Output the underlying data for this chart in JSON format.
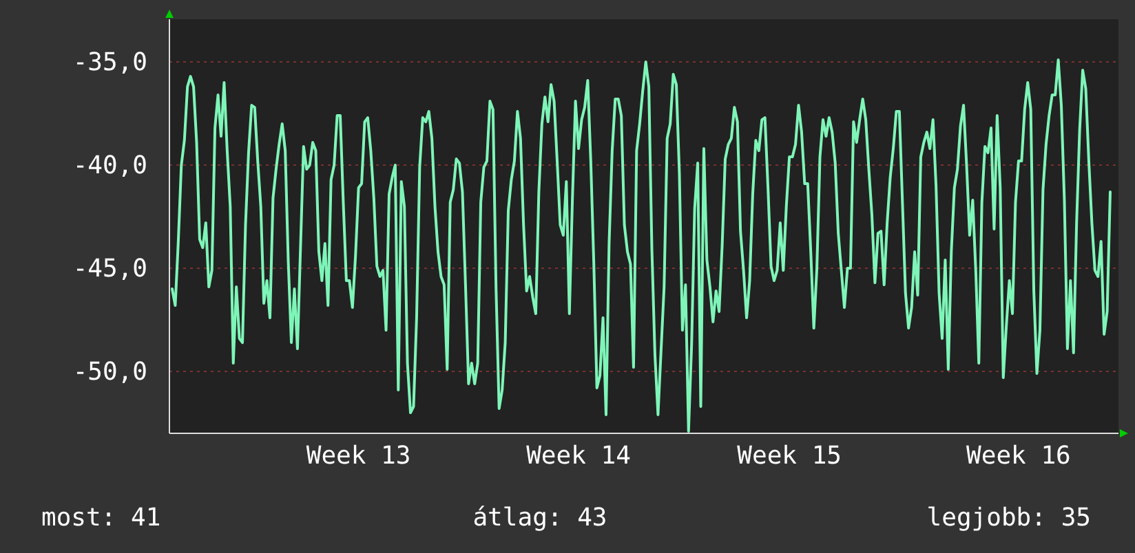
{
  "chart_data": {
    "type": "line",
    "categories": [
      null,
      null,
      null,
      null,
      null,
      null,
      null,
      null,
      null,
      null,
      null,
      null,
      null,
      null,
      null,
      null,
      null,
      null,
      null,
      null,
      null,
      null,
      null,
      null,
      null,
      null,
      null,
      null,
      null,
      null,
      null,
      null,
      null,
      null,
      null,
      null,
      null,
      null,
      null,
      null,
      null,
      null,
      null,
      null,
      null,
      null,
      null,
      null,
      null,
      null,
      null,
      null,
      null,
      null,
      null,
      null,
      null,
      null,
      null,
      null,
      null,
      "Week 13",
      null,
      null,
      null,
      null,
      null,
      null,
      null,
      null,
      null,
      null,
      null,
      null,
      null,
      null,
      null,
      null,
      null,
      null,
      null,
      null,
      null,
      null,
      null,
      null,
      null,
      null,
      null,
      null,
      null,
      null,
      null,
      null,
      null,
      null,
      null,
      null,
      null,
      null,
      null,
      null,
      null,
      null,
      null,
      null,
      null,
      null,
      null,
      null,
      null,
      null,
      null,
      null,
      null,
      null,
      null,
      null,
      null,
      null,
      null,
      null,
      null,
      null,
      null,
      null,
      null,
      null,
      null,
      null,
      null,
      null,
      null,
      "Week 14",
      null,
      null,
      null,
      null,
      null,
      null,
      null,
      null,
      null,
      null,
      null,
      null,
      null,
      null,
      null,
      null,
      null,
      null,
      null,
      null,
      null,
      null,
      null,
      null,
      null,
      null,
      null,
      null,
      null,
      null,
      null,
      null,
      null,
      null,
      null,
      null,
      null,
      null,
      null,
      null,
      null,
      null,
      null,
      null,
      null,
      null,
      null,
      null,
      null,
      null,
      null,
      null,
      null,
      null,
      null,
      null,
      null,
      null,
      null,
      null,
      null,
      null,
      null,
      null,
      null,
      null,
      null,
      null,
      "Week 15",
      null,
      null,
      null,
      null,
      null,
      null,
      null,
      null,
      null,
      null,
      null,
      null,
      null,
      null,
      null,
      null,
      null,
      null,
      null,
      null,
      null,
      null,
      null,
      null,
      null,
      null,
      null,
      null,
      null,
      null,
      null,
      null,
      null,
      null,
      null,
      null,
      null,
      null,
      null,
      null,
      null,
      null,
      null,
      null,
      null,
      null,
      null,
      null,
      null,
      null,
      null,
      null,
      null,
      null,
      null,
      null,
      null,
      null,
      null,
      null,
      null,
      null,
      null,
      null,
      null,
      null,
      null,
      null,
      null,
      null,
      null,
      null,
      null,
      null,
      "Week 16",
      null,
      null,
      null,
      null,
      null,
      null,
      null,
      null,
      null,
      null,
      null,
      null,
      null,
      null,
      null,
      null,
      null,
      null,
      null,
      null,
      null,
      null,
      null,
      null,
      null,
      null,
      null,
      null,
      null,
      null
    ],
    "ylim": [
      -53,
      -32.93
    ],
    "yticks": [
      {
        "value": -50,
        "label": "-50,0"
      },
      {
        "value": -45,
        "label": "-45,0"
      },
      {
        "value": -40,
        "label": "-40,0"
      },
      {
        "value": -35,
        "label": "-35,0"
      }
    ],
    "grid": "y",
    "annotations": [
      "most: 41",
      "átlag: 43",
      "legjobb: 35"
    ],
    "series": [
      {
        "color": "#7ef5b8",
        "values": [
          -46.0,
          -46.8,
          -43.7,
          -40.0,
          -38.8,
          -36.2,
          -35.7,
          -36.2,
          -38.9,
          -43.6,
          -44.0,
          -42.8,
          -45.9,
          -45.1,
          -38.2,
          -36.6,
          -38.6,
          -36.0,
          -39.3,
          -42.0,
          -49.6,
          -45.9,
          -48.4,
          -48.6,
          -42.9,
          -39.4,
          -37.1,
          -37.2,
          -39.8,
          -42.0,
          -46.7,
          -45.6,
          -47.4,
          -41.6,
          -40.2,
          -39.0,
          -38.0,
          -39.3,
          -44.7,
          -48.6,
          -46.0,
          -48.9,
          -44.0,
          -39.1,
          -40.2,
          -40.0,
          -38.9,
          -39.3,
          -44.2,
          -45.6,
          -43.8,
          -46.8,
          -40.7,
          -40.0,
          -37.6,
          -37.6,
          -41.8,
          -45.6,
          -45.6,
          -46.9,
          -44.4,
          -41.1,
          -40.9,
          -37.9,
          -37.7,
          -39.3,
          -41.6,
          -44.9,
          -45.4,
          -45.1,
          -48.0,
          -41.4,
          -40.6,
          -40.0,
          -50.9,
          -40.8,
          -42.0,
          -49.6,
          -52.0,
          -51.7,
          -47.4,
          -40.1,
          -37.7,
          -37.9,
          -37.4,
          -38.7,
          -42.0,
          -44.2,
          -45.4,
          -45.8,
          -49.9,
          -41.8,
          -41.2,
          -39.7,
          -39.9,
          -41.3,
          -45.8,
          -50.6,
          -49.6,
          -50.6,
          -49.6,
          -41.8,
          -40.1,
          -39.8,
          -36.9,
          -37.3,
          -46.0,
          -51.8,
          -50.9,
          -48.6,
          -42.2,
          -40.7,
          -39.8,
          -37.4,
          -38.7,
          -42.9,
          -46.1,
          -45.4,
          -46.4,
          -47.2,
          -41.3,
          -38.0,
          -36.7,
          -37.9,
          -36.1,
          -36.9,
          -39.8,
          -42.9,
          -43.4,
          -40.8,
          -47.2,
          -41.6,
          -36.9,
          -39.2,
          -37.8,
          -37.2,
          -35.9,
          -39.8,
          -44.8,
          -50.8,
          -50.2,
          -47.4,
          -52.1,
          -43.8,
          -39.3,
          -36.8,
          -36.8,
          -37.6,
          -42.9,
          -44.2,
          -44.8,
          -49.8,
          -39.3,
          -38.0,
          -36.4,
          -35.0,
          -36.2,
          -44.1,
          -49.2,
          -52.1,
          -49.0,
          -45.9,
          -38.7,
          -38.0,
          -35.6,
          -36.1,
          -40.4,
          -48.0,
          -45.8,
          -52.9,
          -48.7,
          -42.1,
          -39.9,
          -51.7,
          -39.2,
          -44.6,
          -45.9,
          -47.6,
          -46.1,
          -47.1,
          -43.9,
          -39.7,
          -39.0,
          -38.7,
          -37.2,
          -37.9,
          -43.2,
          -45.1,
          -47.4,
          -45.6,
          -41.4,
          -38.8,
          -39.3,
          -37.8,
          -37.7,
          -41.1,
          -44.9,
          -45.6,
          -45.1,
          -42.8,
          -45.1,
          -42.0,
          -39.6,
          -39.6,
          -39.0,
          -37.1,
          -38.4,
          -40.9,
          -40.9,
          -44.2,
          -47.9,
          -45.0,
          -39.6,
          -37.8,
          -38.6,
          -37.7,
          -38.4,
          -39.9,
          -43.3,
          -45.1,
          -46.9,
          -45.0,
          -45.0,
          -37.9,
          -38.9,
          -37.8,
          -36.8,
          -37.8,
          -40.2,
          -42.4,
          -45.7,
          -43.3,
          -43.2,
          -45.8,
          -42.8,
          -40.6,
          -39.2,
          -37.4,
          -37.4,
          -41.8,
          -46.2,
          -47.9,
          -46.9,
          -44.2,
          -46.3,
          -39.6,
          -38.9,
          -38.4,
          -39.2,
          -37.8,
          -41.0,
          -46.2,
          -48.4,
          -44.6,
          -49.9,
          -44.2,
          -41.1,
          -40.2,
          -38.1,
          -37.1,
          -40.0,
          -43.4,
          -41.7,
          -45.1,
          -49.6,
          -41.8,
          -39.1,
          -39.4,
          -38.2,
          -43.1,
          -37.6,
          -41.1,
          -50.3,
          -47.8,
          -45.6,
          -47.2,
          -41.8,
          -39.8,
          -39.8,
          -37.3,
          -36.0,
          -37.3,
          -46.1,
          -50.1,
          -48.0,
          -41.2,
          -39.0,
          -37.6,
          -36.6,
          -36.6,
          -34.9,
          -37.1,
          -41.7,
          -48.9,
          -45.6,
          -49.1,
          -42.8,
          -38.3,
          -35.4,
          -36.3,
          -39.8,
          -42.8,
          -45.1,
          -45.4,
          -43.7,
          -48.2,
          -47.1,
          -41.3
        ]
      }
    ]
  }
}
